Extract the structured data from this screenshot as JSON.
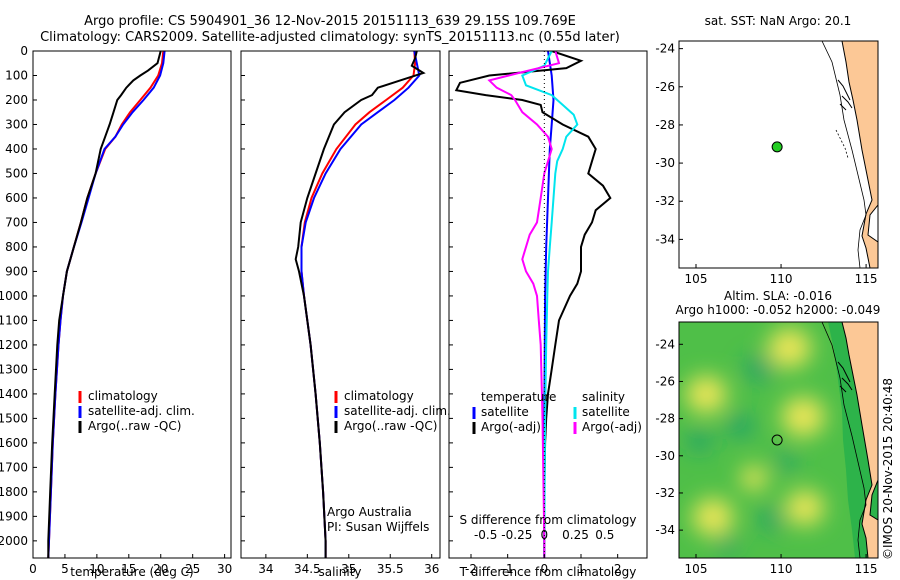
{
  "header": {
    "line1": "Argo profile: CS 5904901_36 12-Nov-2015 20151113_639 29.15S 109.769E",
    "line2": "Climatology: CARS2009. Satellite-adjusted climatology: synTS_20151113.nc (0.55d later)"
  },
  "stamp": "©IMOS 20-Nov-2015 20:40:48",
  "colors": {
    "climatology": "#ff0000",
    "satellite": "#0000ff",
    "argo": "#000000",
    "sal_satellite": "#00e5ee",
    "sal_argo": "#ff00ff",
    "land": "#fcc896"
  },
  "chart_data": [
    {
      "type": "line",
      "id": "temperature",
      "xlabel": "temperature (deg C)",
      "xlim": [
        0,
        31
      ],
      "ylim": [
        2070,
        0
      ],
      "xticks": [
        0,
        5,
        10,
        15,
        20,
        25,
        30
      ],
      "yticks": [
        0,
        100,
        200,
        300,
        400,
        500,
        600,
        700,
        800,
        900,
        1000,
        1100,
        1200,
        1300,
        1400,
        1500,
        1600,
        1700,
        1800,
        1900,
        2000
      ],
      "legend": [
        "climatology",
        "satellite-adj. clim.",
        "Argo(..raw -QC)"
      ],
      "series": [
        {
          "name": "climatology",
          "color": "#ff0000",
          "depth": [
            0,
            50,
            100,
            150,
            200,
            250,
            300,
            350,
            400,
            500,
            600,
            700,
            800,
            900,
            1000,
            1100,
            1200,
            1400,
            1600,
            1800,
            2000,
            2070
          ],
          "values": [
            20.4,
            20.2,
            19.6,
            18.4,
            16.8,
            15.2,
            13.9,
            12.9,
            11.3,
            9.8,
            8.5,
            7.5,
            6.4,
            5.3,
            4.7,
            4.3,
            4.0,
            3.5,
            3.1,
            2.8,
            2.5,
            2.4
          ]
        },
        {
          "name": "satellite-adj. clim.",
          "color": "#0000ff",
          "depth": [
            0,
            50,
            100,
            150,
            200,
            250,
            300,
            350,
            400,
            500,
            600,
            700,
            800,
            900,
            1000,
            1100,
            1200,
            1400,
            1600,
            1800,
            2000,
            2070
          ],
          "values": [
            20.6,
            20.4,
            19.9,
            18.9,
            17.3,
            15.6,
            14.1,
            12.9,
            11.2,
            9.8,
            8.7,
            7.6,
            6.4,
            5.3,
            4.7,
            4.3,
            4.0,
            3.5,
            3.1,
            2.8,
            2.5,
            2.4
          ]
        },
        {
          "name": "Argo(..raw -QC)",
          "color": "#000000",
          "depth": [
            0,
            50,
            80,
            100,
            120,
            150,
            180,
            200,
            250,
            300,
            350,
            400,
            500,
            600,
            700,
            800,
            900,
            1000,
            1100,
            1200,
            1400,
            1600,
            1800,
            2000,
            2070
          ],
          "values": [
            20.0,
            19.5,
            18.0,
            16.8,
            15.7,
            14.6,
            13.8,
            13.2,
            12.6,
            12.0,
            11.3,
            10.6,
            9.8,
            8.5,
            7.5,
            6.4,
            5.3,
            4.7,
            4.1,
            3.8,
            3.4,
            3.0,
            2.7,
            2.4,
            2.4
          ]
        }
      ]
    },
    {
      "type": "line",
      "id": "salinity",
      "xlabel": "salinity",
      "xlim": [
        33.7,
        36.1
      ],
      "ylim": [
        2070,
        0
      ],
      "xticks": [
        34,
        34.5,
        35,
        35.5,
        36
      ],
      "legend": [
        "climatology",
        "satellite-adj. clim.",
        "Argo(..raw -QC)"
      ],
      "annotation": [
        "Argo Australia",
        "PI: Susan Wijffels"
      ],
      "series": [
        {
          "name": "climatology",
          "color": "#ff0000",
          "depth": [
            0,
            50,
            100,
            150,
            200,
            250,
            300,
            400,
            500,
            600,
            700,
            800,
            900,
            1000,
            1100,
            1200,
            1400,
            1600,
            1800,
            2000,
            2070
          ],
          "values": [
            35.79,
            35.8,
            35.78,
            35.65,
            35.45,
            35.25,
            35.08,
            34.85,
            34.68,
            34.55,
            34.47,
            34.43,
            34.43,
            34.46,
            34.5,
            34.54,
            34.6,
            34.65,
            34.69,
            34.72,
            34.72
          ]
        },
        {
          "name": "satellite-adj. clim.",
          "color": "#0000ff",
          "depth": [
            0,
            50,
            100,
            150,
            200,
            250,
            300,
            400,
            500,
            600,
            700,
            800,
            900,
            1000,
            1100,
            1200,
            1400,
            1600,
            1800,
            2000,
            2070
          ],
          "values": [
            35.79,
            35.82,
            35.85,
            35.72,
            35.55,
            35.35,
            35.15,
            34.9,
            34.72,
            34.58,
            34.48,
            34.43,
            34.43,
            34.46,
            34.5,
            34.54,
            34.6,
            34.65,
            34.69,
            34.72,
            34.72
          ]
        },
        {
          "name": "Argo(..raw -QC)",
          "color": "#000000",
          "depth": [
            0,
            30,
            60,
            90,
            120,
            150,
            180,
            200,
            250,
            300,
            400,
            500,
            600,
            700,
            800,
            850,
            900,
            950,
            1000,
            1100,
            1200,
            1400,
            1600,
            1800,
            2000,
            2070
          ],
          "values": [
            35.82,
            35.8,
            35.76,
            35.9,
            35.62,
            35.35,
            35.28,
            35.15,
            34.95,
            34.82,
            34.7,
            34.6,
            34.5,
            34.42,
            34.39,
            34.36,
            34.4,
            34.43,
            34.46,
            34.5,
            34.54,
            34.6,
            34.65,
            34.69,
            34.72,
            34.72
          ]
        }
      ]
    },
    {
      "type": "line",
      "id": "difference",
      "xlabel": "T difference from climatology",
      "xlabel_top": "S difference from climatology",
      "xlim": [
        -2.6,
        2.8
      ],
      "ylim": [
        2070,
        0
      ],
      "xticks": [
        -2,
        -1,
        0,
        1,
        2
      ],
      "xticks_top": [
        -0.5,
        -0.25,
        0,
        0.25,
        0.5
      ],
      "legend_temperature": [
        "temperature",
        "satellite",
        "Argo(-adj)"
      ],
      "legend_salinity": [
        "salinity",
        "satellite",
        "Argo(-adj)"
      ],
      "series": [
        {
          "name": "satellite",
          "group": "temperature",
          "color": "#0000ff",
          "depth": [
            0,
            100,
            200,
            300,
            400,
            600,
            800,
            1000,
            1500,
            2000,
            2070
          ],
          "values": [
            0.1,
            0.2,
            0.25,
            0.2,
            0.15,
            0.1,
            0.05,
            0.02,
            0.0,
            0.0,
            0.0
          ]
        },
        {
          "name": "Argo(-adj)",
          "group": "temperature",
          "color": "#000000",
          "depth": [
            0,
            40,
            70,
            100,
            130,
            160,
            180,
            200,
            220,
            250,
            300,
            350,
            400,
            450,
            500,
            550,
            600,
            650,
            700,
            750,
            800,
            850,
            900,
            950,
            1000,
            1100,
            1200,
            1300,
            1400,
            1500,
            1600,
            1800,
            2000,
            2070
          ],
          "values": [
            0.2,
            1.0,
            0.6,
            -1.5,
            -2.3,
            -2.4,
            -1.6,
            -0.6,
            -0.1,
            -0.05,
            0.5,
            1.2,
            1.4,
            1.3,
            1.2,
            1.6,
            1.8,
            1.4,
            1.3,
            1.1,
            1.0,
            1.0,
            1.0,
            0.9,
            0.7,
            0.4,
            0.3,
            0.2,
            0.1,
            0.05,
            0.02,
            0.0,
            0.0,
            0.0
          ]
        },
        {
          "name": "satellite",
          "group": "salinity",
          "color": "#00e5ee",
          "depth": [
            0,
            60,
            100,
            140,
            180,
            220,
            260,
            300,
            350,
            400,
            450,
            500,
            600,
            700,
            800,
            900,
            1000,
            1200,
            1500,
            2000,
            2070
          ],
          "values": [
            0.2,
            0.0,
            -0.6,
            -0.5,
            0.2,
            0.5,
            0.8,
            0.9,
            0.6,
            0.5,
            0.35,
            0.3,
            0.25,
            0.2,
            0.15,
            0.1,
            0.08,
            0.05,
            0.02,
            0.0,
            0.0
          ]
        },
        {
          "name": "Argo(-adj)",
          "group": "salinity",
          "color": "#ff00ff",
          "depth": [
            0,
            50,
            90,
            120,
            150,
            180,
            200,
            250,
            300,
            350,
            400,
            500,
            600,
            700,
            750,
            800,
            850,
            900,
            950,
            1000,
            1100,
            1200,
            1500,
            2000,
            2070
          ],
          "values": [
            0.3,
            0.4,
            -0.7,
            -1.5,
            -1.3,
            -0.9,
            -0.8,
            -0.6,
            -0.2,
            0.1,
            0.2,
            0.0,
            -0.1,
            -0.2,
            -0.4,
            -0.5,
            -0.6,
            -0.5,
            -0.3,
            -0.2,
            -0.15,
            -0.1,
            -0.05,
            0.0,
            0.0
          ]
        }
      ]
    },
    {
      "type": "map",
      "id": "sst-map",
      "title": "sat. SST: NaN Argo: 20.1",
      "xlim": [
        104,
        115.7
      ],
      "ylim": [
        -35.5,
        -23.6
      ],
      "xticks": [
        105,
        110,
        115
      ],
      "yticks": [
        -24,
        -26,
        -28,
        -30,
        -32,
        -34
      ],
      "profile_location": {
        "lon": 109.769,
        "lat": -29.15
      }
    },
    {
      "type": "heatmap",
      "id": "sla-map",
      "title_line1": "Altim. SLA: -0.016",
      "title_line2": "Argo h1000: -0.052 h2000: -0.049",
      "xlim": [
        104,
        115.7
      ],
      "ylim": [
        -35.5,
        -22.8
      ],
      "xticks": [
        105,
        110,
        115
      ],
      "yticks": [
        -24,
        -26,
        -28,
        -30,
        -32,
        -34
      ],
      "profile_location": {
        "lon": 109.769,
        "lat": -29.15
      },
      "high_sla_centres": [
        {
          "lon": 105.6,
          "lat": -26.7,
          "rel": 0.85
        },
        {
          "lon": 110.5,
          "lat": -24.2,
          "rel": 0.9
        },
        {
          "lon": 111.3,
          "lat": -27.9,
          "rel": 0.9
        },
        {
          "lon": 106.0,
          "lat": -33.3,
          "rel": 0.85
        },
        {
          "lon": 111.4,
          "lat": -32.8,
          "rel": 0.8
        },
        {
          "lon": 108.4,
          "lat": -31.2,
          "rel": 0.55
        }
      ],
      "low_sla_centres": [
        {
          "lon": 108.7,
          "lat": -25.3,
          "rel": 0.7
        },
        {
          "lon": 105.2,
          "lat": -29.2,
          "rel": 0.6
        },
        {
          "lon": 107.6,
          "lat": -28.4,
          "rel": 0.65
        },
        {
          "lon": 109.4,
          "lat": -33.4,
          "rel": 0.6
        },
        {
          "lon": 110.3,
          "lat": -30.3,
          "rel": 0.5
        },
        {
          "lon": 106.8,
          "lat": -34.8,
          "rel": 0.5
        }
      ]
    }
  ]
}
